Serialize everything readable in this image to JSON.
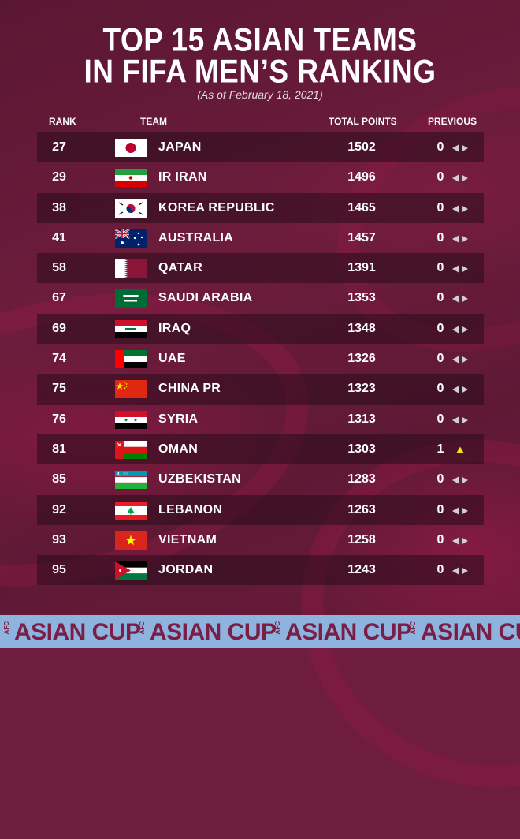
{
  "header": {
    "title_line1": "TOP 15 ASIAN TEAMS",
    "title_line2": "IN FIFA MEN’S  RANKING",
    "subtitle": "(As of  February 18, 2021)"
  },
  "columns": {
    "rank": "RANK",
    "team": "TEAM",
    "points": "TOTAL POINTS",
    "previous": "PREVIOUS"
  },
  "teams": [
    {
      "rank": "27",
      "name": "JAPAN",
      "points": "1502",
      "previous": "0",
      "flag": "japan-flag-icon",
      "trend": "unchanged"
    },
    {
      "rank": "29",
      "name": "IR IRAN",
      "points": "1496",
      "previous": "0",
      "flag": "iran-flag-icon",
      "trend": "unchanged"
    },
    {
      "rank": "38",
      "name": "KOREA REPUBLIC",
      "points": "1465",
      "previous": "0",
      "flag": "korea-flag-icon",
      "trend": "unchanged"
    },
    {
      "rank": "41",
      "name": "AUSTRALIA",
      "points": "1457",
      "previous": "0",
      "flag": "australia-flag-icon",
      "trend": "unchanged"
    },
    {
      "rank": "58",
      "name": "QATAR",
      "points": "1391",
      "previous": "0",
      "flag": "qatar-flag-icon",
      "trend": "unchanged"
    },
    {
      "rank": "67",
      "name": "SAUDI ARABIA",
      "points": "1353",
      "previous": "0",
      "flag": "saudi-arabia-flag-icon",
      "trend": "unchanged"
    },
    {
      "rank": "69",
      "name": "IRAQ",
      "points": "1348",
      "previous": "0",
      "flag": "iraq-flag-icon",
      "trend": "unchanged"
    },
    {
      "rank": "74",
      "name": "UAE",
      "points": "1326",
      "previous": "0",
      "flag": "uae-flag-icon",
      "trend": "unchanged"
    },
    {
      "rank": "75",
      "name": "CHINA PR",
      "points": "1323",
      "previous": "0",
      "flag": "china-flag-icon",
      "trend": "unchanged"
    },
    {
      "rank": "76",
      "name": "SYRIA",
      "points": "1313",
      "previous": "0",
      "flag": "syria-flag-icon",
      "trend": "unchanged"
    },
    {
      "rank": "81",
      "name": "OMAN",
      "points": "1303",
      "previous": "1",
      "flag": "oman-flag-icon",
      "trend": "up"
    },
    {
      "rank": "85",
      "name": "UZBEKISTAN",
      "points": "1283",
      "previous": "0",
      "flag": "uzbekistan-flag-icon",
      "trend": "unchanged"
    },
    {
      "rank": "92",
      "name": "LEBANON",
      "points": "1263",
      "previous": "0",
      "flag": "lebanon-flag-icon",
      "trend": "unchanged"
    },
    {
      "rank": "93",
      "name": "VIETNAM",
      "points": "1258",
      "previous": "0",
      "flag": "vietnam-flag-icon",
      "trend": "unchanged"
    },
    {
      "rank": "95",
      "name": "JORDAN",
      "points": "1243",
      "previous": "0",
      "flag": "jordan-flag-icon",
      "trend": "unchanged"
    }
  ],
  "footer": {
    "brand_small": "AFC",
    "brand": "ASIAN CUP"
  },
  "colors": {
    "background": "#6e1d3e",
    "row_dark": "#3a1026",
    "arrow_unchanged": "#cfcfcf",
    "arrow_up": "#f4e21a",
    "footer_band": "#8db3de",
    "footer_text": "#7a1e45"
  }
}
